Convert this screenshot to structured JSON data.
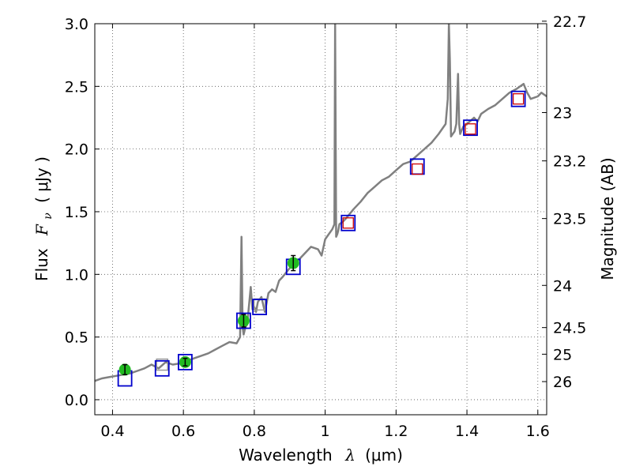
{
  "chart_data": {
    "type": "line",
    "title": "",
    "xlabel_text": "Wavelength",
    "xlabel_symbol": "λ",
    "xlabel_unit": "(μm)",
    "ylabel_text": "Flux",
    "ylabel_symbol": "F",
    "ylabel_sub": "ν",
    "ylabel_unit": "( μJy )",
    "y2label": "Magnitude (AB)",
    "xlim": [
      0.35,
      1.625
    ],
    "ylim": [
      -0.12,
      3.0
    ],
    "grid": true,
    "x_ticks": [
      0.4,
      0.6,
      0.8,
      1.0,
      1.2,
      1.4,
      1.6
    ],
    "x_tick_labels": [
      "0.4",
      "0.6",
      "0.8",
      "1",
      "1.2",
      "1.4",
      "1.6"
    ],
    "y_ticks": [
      0.0,
      0.5,
      1.0,
      1.5,
      2.0,
      2.5,
      3.0
    ],
    "y_tick_labels": [
      "0.0",
      "0.5",
      "1.0",
      "1.5",
      "2.0",
      "2.5",
      "3.0"
    ],
    "mag_ticks": [
      22.7,
      23,
      23.2,
      23.5,
      24,
      24.5,
      25,
      26
    ],
    "mag_tick_labels": [
      "22.7",
      "23",
      "23.2",
      "23.5",
      "24",
      "24.5",
      "25",
      "26"
    ],
    "mag_zeropoint": 23.9,
    "colors": {
      "spectrum": "#808080",
      "observed_point": "#22bb22",
      "model_box": "#0000cc",
      "red_box": "#cc0000",
      "grey_box": "#999999",
      "grid": "#555555",
      "frame": "#000000"
    },
    "series": [
      {
        "name": "model spectrum",
        "style": "line",
        "x": [
          0.35,
          0.37,
          0.39,
          0.41,
          0.43,
          0.45,
          0.47,
          0.49,
          0.51,
          0.53,
          0.55,
          0.57,
          0.59,
          0.61,
          0.63,
          0.65,
          0.67,
          0.69,
          0.71,
          0.73,
          0.75,
          0.76,
          0.764,
          0.767,
          0.77,
          0.775,
          0.78,
          0.79,
          0.795,
          0.8,
          0.805,
          0.81,
          0.82,
          0.83,
          0.84,
          0.85,
          0.86,
          0.87,
          0.88,
          0.9,
          0.92,
          0.94,
          0.96,
          0.98,
          0.99,
          1.0,
          1.01,
          1.02,
          1.026,
          1.028,
          1.031,
          1.034,
          1.037,
          1.04,
          1.05,
          1.06,
          1.08,
          1.1,
          1.12,
          1.14,
          1.16,
          1.18,
          1.2,
          1.22,
          1.24,
          1.26,
          1.28,
          1.3,
          1.32,
          1.34,
          1.346,
          1.349,
          1.352,
          1.355,
          1.36,
          1.365,
          1.37,
          1.375,
          1.378,
          1.381,
          1.385,
          1.39,
          1.4,
          1.42,
          1.43,
          1.44,
          1.46,
          1.48,
          1.5,
          1.52,
          1.54,
          1.56,
          1.57,
          1.58,
          1.6,
          1.61,
          1.625
        ],
        "y": [
          0.15,
          0.17,
          0.18,
          0.19,
          0.2,
          0.21,
          0.23,
          0.25,
          0.28,
          0.25,
          0.3,
          0.28,
          0.29,
          0.31,
          0.33,
          0.35,
          0.37,
          0.4,
          0.43,
          0.46,
          0.45,
          0.5,
          1.3,
          0.58,
          0.52,
          0.58,
          0.6,
          0.9,
          0.72,
          0.74,
          0.7,
          0.78,
          0.82,
          0.7,
          0.85,
          0.88,
          0.86,
          0.95,
          0.98,
          1.05,
          1.1,
          1.16,
          1.22,
          1.2,
          1.15,
          1.28,
          1.32,
          1.36,
          1.4,
          3.0,
          1.3,
          1.32,
          1.35,
          1.4,
          1.42,
          1.45,
          1.52,
          1.58,
          1.65,
          1.7,
          1.75,
          1.78,
          1.83,
          1.88,
          1.9,
          1.95,
          2.0,
          2.05,
          2.12,
          2.2,
          2.4,
          3.0,
          2.7,
          2.1,
          2.12,
          2.14,
          2.2,
          2.6,
          2.2,
          2.12,
          2.15,
          2.18,
          2.2,
          2.25,
          2.22,
          2.28,
          2.32,
          2.35,
          2.4,
          2.45,
          2.48,
          2.52,
          2.45,
          2.4,
          2.42,
          2.45,
          2.42
        ]
      },
      {
        "name": "observed photometry",
        "style": "points",
        "x": [
          0.435,
          0.605,
          0.77,
          0.91
        ],
        "y": [
          0.24,
          0.3,
          0.63,
          1.09
        ],
        "yerr": [
          0.04,
          0.03,
          0.05,
          0.06
        ]
      },
      {
        "name": "model photometry (blue)",
        "style": "open-square",
        "x": [
          0.435,
          0.54,
          0.605,
          0.77,
          0.815,
          0.91,
          1.065,
          1.26,
          1.41,
          1.545
        ],
        "y": [
          0.17,
          0.25,
          0.3,
          0.63,
          0.74,
          1.06,
          1.41,
          1.86,
          2.17,
          2.4
        ]
      },
      {
        "name": "model photometry (red)",
        "style": "open-square",
        "x": [
          1.065,
          1.26,
          1.41,
          1.545
        ],
        "y": [
          1.41,
          1.84,
          2.16,
          2.4
        ]
      },
      {
        "name": "model photometry (grey)",
        "style": "open-square",
        "x": [
          0.54,
          0.815
        ],
        "y": [
          0.28,
          0.76
        ]
      }
    ]
  }
}
